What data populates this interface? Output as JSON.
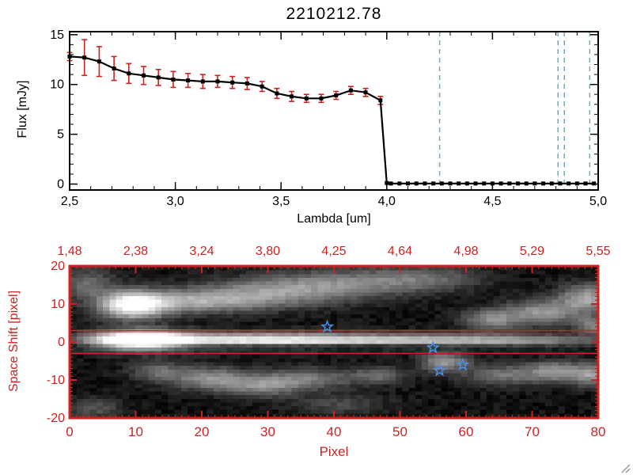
{
  "colors": {
    "spectrum": "#000000",
    "error_bars": "#cc2222",
    "red_axis": "#cc2222",
    "zero_line": "#cc2222",
    "marker_lines": "#6aaccc",
    "aperture_lines": "#cc2222",
    "stars": "#4d8fe8",
    "background": "#ffffff"
  },
  "chart_data": [
    {
      "type": "line",
      "title": "2210212.78",
      "xlabel": "Lambda [um]",
      "ylabel": "Flux [mJy]",
      "xlim": [
        2.5,
        5.0
      ],
      "ylim": [
        -0.6,
        15.3
      ],
      "xtick_values": [
        2.5,
        3.0,
        3.5,
        4.0,
        4.5,
        5.0
      ],
      "xticks": [
        "2,5",
        "3,0",
        "3,5",
        "4,0",
        "4,5",
        "5,0"
      ],
      "ytick_values": [
        0,
        5,
        10,
        15
      ],
      "yticks": [
        "0",
        "5",
        "10",
        "15"
      ],
      "x": [
        2.5,
        2.57,
        2.64,
        2.71,
        2.78,
        2.85,
        2.92,
        2.99,
        3.06,
        3.13,
        3.2,
        3.27,
        3.34,
        3.41,
        3.48,
        3.55,
        3.62,
        3.69,
        3.76,
        3.83,
        3.9,
        3.97,
        4.0,
        4.02,
        4.06,
        4.1,
        4.14,
        4.18,
        4.22,
        4.26,
        4.3,
        4.34,
        4.38,
        4.42,
        4.46,
        4.5,
        4.54,
        4.58,
        4.62,
        4.66,
        4.7,
        4.74,
        4.78,
        4.82,
        4.86,
        4.9,
        4.94,
        4.98
      ],
      "y": [
        12.8,
        12.7,
        12.3,
        11.6,
        11.1,
        10.9,
        10.7,
        10.5,
        10.4,
        10.3,
        10.3,
        10.2,
        10.1,
        9.8,
        9.1,
        8.8,
        8.6,
        8.6,
        8.9,
        9.4,
        9.2,
        8.4,
        0.1,
        0.05,
        0.05,
        0.05,
        0.05,
        0.05,
        0.05,
        0.05,
        0.05,
        0.05,
        0.05,
        0.05,
        0.05,
        0.05,
        0.05,
        0.05,
        0.05,
        0.05,
        0.05,
        0.05,
        0.05,
        0.05,
        0.05,
        0.05,
        0.05,
        0.05
      ],
      "yerr": [
        0.4,
        1.8,
        1.5,
        1.2,
        1.0,
        0.9,
        0.8,
        0.8,
        0.7,
        0.7,
        0.6,
        0.6,
        0.6,
        0.5,
        0.5,
        0.5,
        0.4,
        0.4,
        0.4,
        0.4,
        0.4,
        0.4,
        0.1,
        0.1,
        0.1,
        0.1,
        0.1,
        0.1,
        0.1,
        0.1,
        0.1,
        0.1,
        0.1,
        0.1,
        0.1,
        0.1,
        0.1,
        0.1,
        0.1,
        0.1,
        0.1,
        0.1,
        0.1,
        0.1,
        0.1,
        0.1,
        0.1,
        0.1
      ],
      "vlines": [
        4.25,
        4.81,
        4.84,
        4.96
      ],
      "zero_line_start": 4.0
    },
    {
      "type": "heatmap",
      "xlabel": "Pixel",
      "ylabel": "Space Shift [pixel]",
      "xlim": [
        0,
        80
      ],
      "ylim": [
        -20,
        20
      ],
      "xtick_values": [
        0,
        10,
        20,
        30,
        40,
        50,
        60,
        70,
        80
      ],
      "xticks": [
        "0",
        "10",
        "20",
        "30",
        "40",
        "50",
        "60",
        "70",
        "80"
      ],
      "top_ticks": [
        "1,48",
        "2,38",
        "3,24",
        "3,80",
        "4,25",
        "4,64",
        "4,98",
        "5,29",
        "5,55"
      ],
      "ytick_values": [
        -20,
        -10,
        0,
        10,
        20
      ],
      "yticks": [
        "-20",
        "-10",
        "0",
        "10",
        "20"
      ],
      "aperture_lines": [
        3,
        -3
      ],
      "stars": [
        [
          39,
          4
        ],
        [
          55,
          -1.5
        ],
        [
          56,
          -7.5
        ],
        [
          59.5,
          -6
        ]
      ],
      "blobs": [
        {
          "x": 10,
          "y": 0.5,
          "sx": 5,
          "sy": 1.8,
          "a": 1.3
        },
        {
          "x": 25,
          "y": 0.4,
          "sx": 12,
          "sy": 1.5,
          "a": 0.7
        },
        {
          "x": 45,
          "y": 0.3,
          "sx": 14,
          "sy": 1.4,
          "a": 0.5
        },
        {
          "x": 66,
          "y": 0.3,
          "sx": 13,
          "sy": 1.2,
          "a": 0.4
        },
        {
          "x": 35,
          "y": -1.2,
          "sx": 22,
          "sy": 0.55,
          "a": -0.45
        },
        {
          "x": 9,
          "y": 10,
          "sx": 3.5,
          "sy": 2.6,
          "a": 0.95
        },
        {
          "x": 18,
          "y": 11,
          "sx": 7,
          "sy": 2.2,
          "a": 0.5
        },
        {
          "x": 30,
          "y": 13,
          "sx": 8,
          "sy": 2.6,
          "a": 0.4
        },
        {
          "x": 41,
          "y": 16,
          "sx": 9,
          "sy": 2.6,
          "a": 0.38
        },
        {
          "x": 54,
          "y": 17.5,
          "sx": 6,
          "sy": 2.2,
          "a": 0.26
        },
        {
          "x": 2,
          "y": 16,
          "sx": 3,
          "sy": 3,
          "a": 0.3
        },
        {
          "x": 64,
          "y": 6,
          "sx": 3,
          "sy": 2,
          "a": 0.42
        },
        {
          "x": 72,
          "y": 8,
          "sx": 4,
          "sy": 2.4,
          "a": 0.5
        },
        {
          "x": 79,
          "y": 12,
          "sx": 3,
          "sy": 2.6,
          "a": 0.55
        },
        {
          "x": 80,
          "y": 4.5,
          "sx": 2,
          "sy": 1.6,
          "a": 0.4
        },
        {
          "x": 13,
          "y": -8,
          "sx": 3,
          "sy": 2,
          "a": 0.3
        },
        {
          "x": 21,
          "y": -10,
          "sx": 4,
          "sy": 2.2,
          "a": 0.45
        },
        {
          "x": 29,
          "y": -12,
          "sx": 4,
          "sy": 2,
          "a": 0.4
        },
        {
          "x": 36,
          "y": -10,
          "sx": 5,
          "sy": 2,
          "a": 0.35
        },
        {
          "x": 47,
          "y": -9,
          "sx": 3,
          "sy": 1.6,
          "a": 0.3
        },
        {
          "x": 57,
          "y": -5.5,
          "sx": 2.5,
          "sy": 1.8,
          "a": 0.5
        },
        {
          "x": 66,
          "y": -9,
          "sx": 4,
          "sy": 2,
          "a": 0.35
        },
        {
          "x": 74,
          "y": -8,
          "sx": 3,
          "sy": 2,
          "a": 0.45
        },
        {
          "x": 80,
          "y": -9,
          "sx": 2.5,
          "sy": 2,
          "a": 0.5
        },
        {
          "x": 3,
          "y": -18,
          "sx": 3,
          "sy": 2,
          "a": 0.22
        },
        {
          "x": 41,
          "y": -17,
          "sx": 5,
          "sy": 2,
          "a": 0.18
        }
      ]
    }
  ]
}
